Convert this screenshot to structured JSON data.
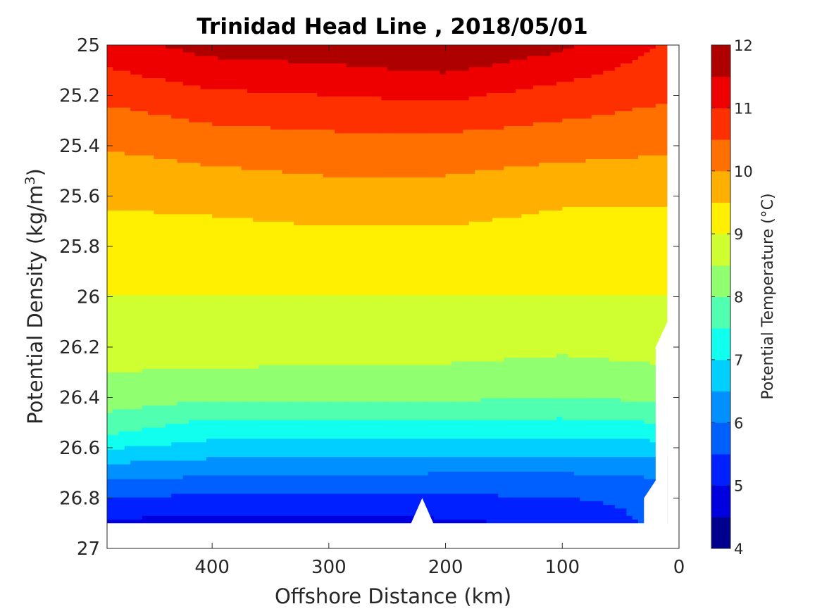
{
  "chart_data": {
    "type": "contourf",
    "title": "Trinidad Head Line , 2018/05/01",
    "xlabel": "Offshore Distance (km)",
    "ylabel": "Potential Density (kg/m³)",
    "ylabel_parts": {
      "main": "Potential Density (kg/m",
      "sup": "3",
      "close": ")"
    },
    "xlim": [
      490,
      0
    ],
    "ylim": [
      25,
      27
    ],
    "x_reversed": true,
    "y_reversed": true,
    "xticks": [
      400,
      300,
      200,
      100,
      0
    ],
    "yticks": [
      25,
      25.2,
      25.4,
      25.6,
      25.8,
      26,
      26.2,
      26.4,
      26.6,
      26.8,
      27
    ],
    "colorbar": {
      "label": "Potential Temperature (°C)",
      "min": 4,
      "max": 12,
      "ticks": [
        4,
        5,
        6,
        7,
        8,
        9,
        10,
        11,
        12
      ],
      "levels": [
        4,
        4.5,
        5,
        5.5,
        6,
        6.5,
        7,
        7.5,
        8,
        8.5,
        9,
        9.5,
        10,
        10.5,
        11,
        11.5,
        12
      ],
      "colors": [
        "#00008f",
        "#0000df",
        "#0020ff",
        "#0060ff",
        "#0090ff",
        "#00cfff",
        "#10ffef",
        "#50ffaf",
        "#90ff70",
        "#cfff30",
        "#ffef00",
        "#ffaf00",
        "#ff7000",
        "#ff3000",
        "#ef0000",
        "#af0000"
      ]
    },
    "data_x_range": [
      490,
      10
    ],
    "data_density_max": 26.9,
    "isopycnal_temperature_profiles": [
      {
        "x_km": 490,
        "rows": [
          [
            25.0,
            11.3
          ],
          [
            25.3,
            10.3
          ],
          [
            25.5,
            9.8
          ],
          [
            25.8,
            9.2
          ],
          [
            26.1,
            8.9
          ],
          [
            26.4,
            8.3
          ],
          [
            26.55,
            7.5
          ],
          [
            26.65,
            6.6
          ],
          [
            26.75,
            5.8
          ],
          [
            26.85,
            5.2
          ],
          [
            26.9,
            4.9
          ]
        ]
      },
      {
        "x_km": 400,
        "rows": [
          [
            25.0,
            11.7
          ],
          [
            25.2,
            10.9
          ],
          [
            25.4,
            10.2
          ],
          [
            25.6,
            9.7
          ],
          [
            25.8,
            9.2
          ],
          [
            26.0,
            9.0
          ],
          [
            26.2,
            8.8
          ],
          [
            26.4,
            8.1
          ],
          [
            26.5,
            7.4
          ],
          [
            26.6,
            6.8
          ],
          [
            26.7,
            6.1
          ],
          [
            26.8,
            5.4
          ],
          [
            26.9,
            4.8
          ]
        ]
      },
      {
        "x_km": 300,
        "rows": [
          [
            25.0,
            11.8
          ],
          [
            25.2,
            11.0
          ],
          [
            25.4,
            10.3
          ],
          [
            25.6,
            9.8
          ],
          [
            25.8,
            9.3
          ],
          [
            26.0,
            9.0
          ],
          [
            26.2,
            8.7
          ],
          [
            26.4,
            8.1
          ],
          [
            26.5,
            7.4
          ],
          [
            26.6,
            6.8
          ],
          [
            26.7,
            6.1
          ],
          [
            26.8,
            5.4
          ],
          [
            26.9,
            4.8
          ]
        ]
      },
      {
        "x_km": 200,
        "rows": [
          [
            25.0,
            12.0
          ],
          [
            25.2,
            11.1
          ],
          [
            25.4,
            10.3
          ],
          [
            25.6,
            9.8
          ],
          [
            25.8,
            9.3
          ],
          [
            26.0,
            9.0
          ],
          [
            26.2,
            8.7
          ],
          [
            26.4,
            8.1
          ],
          [
            26.5,
            7.4
          ],
          [
            26.6,
            6.8
          ],
          [
            26.7,
            6.0
          ],
          [
            26.8,
            5.4
          ],
          [
            26.9,
            4.9
          ]
        ]
      },
      {
        "x_km": 100,
        "rows": [
          [
            25.0,
            11.6
          ],
          [
            25.2,
            10.8
          ],
          [
            25.4,
            10.2
          ],
          [
            25.6,
            9.6
          ],
          [
            25.8,
            9.2
          ],
          [
            26.0,
            9.0
          ],
          [
            26.2,
            8.6
          ],
          [
            26.4,
            8.0
          ],
          [
            26.5,
            7.4
          ],
          [
            26.6,
            6.8
          ],
          [
            26.7,
            6.0
          ],
          [
            26.8,
            5.5
          ],
          [
            26.9,
            5.1
          ]
        ]
      },
      {
        "x_km": 20,
        "rows": [
          [
            25.0,
            11.0
          ],
          [
            25.2,
            10.6
          ],
          [
            25.4,
            10.1
          ],
          [
            25.6,
            9.6
          ],
          [
            25.8,
            9.2
          ],
          [
            26.0,
            9.0
          ],
          [
            26.2,
            8.7
          ],
          [
            26.4,
            8.1
          ],
          [
            26.5,
            7.5
          ],
          [
            26.6,
            6.8
          ],
          [
            26.7,
            6.1
          ],
          [
            26.8,
            5.6
          ]
        ]
      }
    ]
  }
}
